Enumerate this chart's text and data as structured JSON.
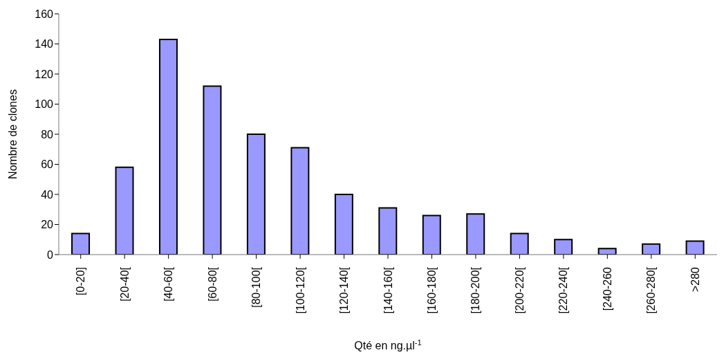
{
  "chart_data": {
    "type": "bar",
    "xlabel": "Qté en ng.µl$^{-1}$",
    "ylabel": "Nombre de clones",
    "categories": [
      "[0-20]",
      "[20-40[",
      "[40-60[",
      "[60-80[",
      "[80-100[",
      "[100-120[",
      "[120-140[",
      "[140-160[",
      "[160-180[",
      "[180-200[",
      "[200-220[",
      "[220-240[",
      "[240-260",
      "[260-280[",
      ">280"
    ],
    "values": [
      14,
      58,
      143,
      112,
      80,
      71,
      40,
      31,
      26,
      27,
      14,
      10,
      4,
      7,
      9
    ],
    "color": "#9999ff",
    "ylim": [
      0,
      160
    ],
    "yticks": [
      0,
      20,
      40,
      60,
      80,
      100,
      120,
      140,
      160
    ],
    "grid": false,
    "legend": false
  }
}
